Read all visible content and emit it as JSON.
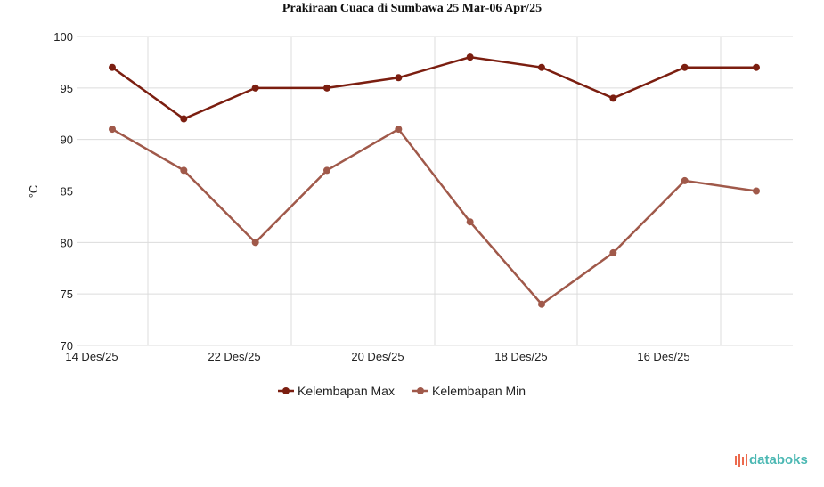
{
  "chart_data": {
    "type": "line",
    "title": "Prakiraan Cuaca di Sumbawa 25 Mar-06 Apr/25",
    "ylabel": "°C",
    "xlabel": "",
    "ylim": [
      70,
      100
    ],
    "yticks": [
      70,
      75,
      80,
      85,
      90,
      95,
      100
    ],
    "xtick_labels": [
      "14 Des/25",
      "22 Des/25",
      "20 Des/25",
      "18 Des/25",
      "16 Des/25"
    ],
    "grid": true,
    "legend_placement": "bottom",
    "series": [
      {
        "name": "Kelembapan Max",
        "color": "#7b1e10",
        "values": [
          97,
          92,
          95,
          95,
          96,
          98,
          97,
          94,
          97,
          97
        ]
      },
      {
        "name": "Kelembapan Min",
        "color": "#a0594a",
        "values": [
          91,
          87,
          80,
          87,
          91,
          82,
          74,
          79,
          86,
          85
        ]
      }
    ]
  },
  "brand": {
    "logo_text": "databoks"
  }
}
